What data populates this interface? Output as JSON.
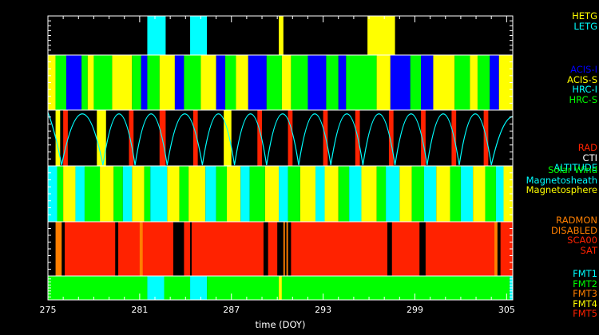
{
  "chart_data": {
    "type": "timeline",
    "xlabel": "time (DOY)",
    "x_range": [
      275,
      305.4
    ],
    "x_ticks": [
      275,
      281,
      287,
      293,
      299,
      305
    ],
    "colors": {
      "HETG": "#ffff00",
      "LETG": "#00ffff",
      "ACIS-I": "#0000ff",
      "ACIS-S": "#ffff00",
      "HRC-I": "#00ffff",
      "HRC-S": "#00ff00",
      "RAD": "#ff2200",
      "CTI": "#ffffff",
      "ALTITUDE": "#00ffff",
      "Solar Wind": "#00ff00",
      "Magnetosheath": "#00ffff",
      "Magnetosphere": "#ffff00",
      "RADMON": "#ff7f00",
      "DISABLED": "#ff7f00",
      "SCA00": "#ff2200",
      "SAT": "#ff2200",
      "FMT1": "#00ffff",
      "FMT2": "#00ff00",
      "FMT3": "#ff7f00",
      "FMT4": "#ffff00",
      "FMT5": "#ff2200",
      "none": "#000000"
    },
    "panels": [
      {
        "legend": [
          "HETG",
          "LETG"
        ],
        "segments": [
          {
            "start": 281.5,
            "end": 282.7,
            "state": "LETG"
          },
          {
            "start": 284.3,
            "end": 285.4,
            "state": "LETG"
          },
          {
            "start": 290.1,
            "end": 290.4,
            "state": "HETG"
          },
          {
            "start": 295.9,
            "end": 297.7,
            "state": "HETG"
          }
        ]
      },
      {
        "legend": [
          "ACIS-I",
          "ACIS-S",
          "HRC-I",
          "HRC-S"
        ],
        "segments": [
          {
            "start": 275.0,
            "end": 275.5,
            "state": "ACIS-S"
          },
          {
            "start": 275.5,
            "end": 276.2,
            "state": "HRC-S"
          },
          {
            "start": 276.2,
            "end": 277.2,
            "state": "ACIS-I"
          },
          {
            "start": 277.2,
            "end": 277.6,
            "state": "HRC-S"
          },
          {
            "start": 277.6,
            "end": 278.0,
            "state": "ACIS-S"
          },
          {
            "start": 278.0,
            "end": 279.2,
            "state": "HRC-S"
          },
          {
            "start": 279.2,
            "end": 280.5,
            "state": "ACIS-S"
          },
          {
            "start": 280.5,
            "end": 281.1,
            "state": "HRC-S"
          },
          {
            "start": 281.1,
            "end": 281.5,
            "state": "ACIS-I"
          },
          {
            "start": 281.5,
            "end": 282.3,
            "state": "HRC-S"
          },
          {
            "start": 282.3,
            "end": 283.3,
            "state": "ACIS-S"
          },
          {
            "start": 283.3,
            "end": 283.9,
            "state": "ACIS-I"
          },
          {
            "start": 283.9,
            "end": 285.0,
            "state": "HRC-S"
          },
          {
            "start": 285.0,
            "end": 286.0,
            "state": "ACIS-S"
          },
          {
            "start": 286.0,
            "end": 286.6,
            "state": "ACIS-I"
          },
          {
            "start": 286.6,
            "end": 287.3,
            "state": "HRC-S"
          },
          {
            "start": 287.3,
            "end": 288.1,
            "state": "ACIS-S"
          },
          {
            "start": 288.1,
            "end": 289.3,
            "state": "ACIS-I"
          },
          {
            "start": 289.3,
            "end": 290.3,
            "state": "HRC-S"
          },
          {
            "start": 290.3,
            "end": 290.9,
            "state": "ACIS-S"
          },
          {
            "start": 290.9,
            "end": 292.0,
            "state": "HRC-S"
          },
          {
            "start": 292.0,
            "end": 293.2,
            "state": "ACIS-I"
          },
          {
            "start": 293.2,
            "end": 294.0,
            "state": "HRC-S"
          },
          {
            "start": 294.0,
            "end": 294.5,
            "state": "ACIS-I"
          },
          {
            "start": 294.5,
            "end": 296.5,
            "state": "HRC-S"
          },
          {
            "start": 296.5,
            "end": 297.4,
            "state": "ACIS-S"
          },
          {
            "start": 297.4,
            "end": 298.7,
            "state": "ACIS-I"
          },
          {
            "start": 298.7,
            "end": 299.4,
            "state": "HRC-S"
          },
          {
            "start": 299.4,
            "end": 300.2,
            "state": "ACIS-I"
          },
          {
            "start": 300.2,
            "end": 301.6,
            "state": "ACIS-S"
          },
          {
            "start": 301.6,
            "end": 302.6,
            "state": "HRC-S"
          },
          {
            "start": 302.6,
            "end": 303.1,
            "state": "ACIS-S"
          },
          {
            "start": 303.1,
            "end": 303.9,
            "state": "HRC-S"
          },
          {
            "start": 303.9,
            "end": 304.5,
            "state": "ACIS-I"
          },
          {
            "start": 304.5,
            "end": 305.4,
            "state": "ACIS-S"
          }
        ]
      },
      {
        "legend": [
          "RAD",
          "CTI",
          "ALTITUDE"
        ],
        "segments": [
          {
            "start": 275.5,
            "end": 275.8,
            "state": "ACIS-S"
          },
          {
            "start": 276.0,
            "end": 276.3,
            "state": "RAD"
          },
          {
            "start": 278.2,
            "end": 278.8,
            "state": "ACIS-S"
          },
          {
            "start": 280.3,
            "end": 280.6,
            "state": "RAD"
          },
          {
            "start": 282.3,
            "end": 282.7,
            "state": "RAD"
          },
          {
            "start": 284.5,
            "end": 284.8,
            "state": "RAD"
          },
          {
            "start": 286.5,
            "end": 287.0,
            "state": "ACIS-S"
          },
          {
            "start": 288.7,
            "end": 289.0,
            "state": "RAD"
          },
          {
            "start": 290.7,
            "end": 291.0,
            "state": "RAD"
          },
          {
            "start": 293.0,
            "end": 293.3,
            "state": "RAD"
          },
          {
            "start": 295.1,
            "end": 295.4,
            "state": "RAD"
          },
          {
            "start": 297.3,
            "end": 297.6,
            "state": "RAD"
          },
          {
            "start": 299.4,
            "end": 299.7,
            "state": "RAD"
          },
          {
            "start": 301.4,
            "end": 301.7,
            "state": "RAD"
          },
          {
            "start": 303.5,
            "end": 303.8,
            "state": "RAD"
          }
        ],
        "altitude_minima_doy": [
          275.9,
          278.6,
          280.7,
          282.8,
          285.1,
          287.2,
          289.3,
          291.4,
          293.5,
          295.6,
          297.7,
          299.8,
          301.9,
          304.0
        ]
      },
      {
        "legend": [
          "Solar Wind",
          "Magnetosheath",
          "Magnetosphere"
        ],
        "segments": [
          {
            "start": 275.0,
            "end": 275.6,
            "state": "Magnetosheath"
          },
          {
            "start": 275.6,
            "end": 276.0,
            "state": "Solar Wind"
          },
          {
            "start": 276.0,
            "end": 276.8,
            "state": "Magnetosphere"
          },
          {
            "start": 276.8,
            "end": 277.4,
            "state": "Magnetosheath"
          },
          {
            "start": 277.4,
            "end": 278.4,
            "state": "Solar Wind"
          },
          {
            "start": 278.4,
            "end": 279.3,
            "state": "Magnetosphere"
          },
          {
            "start": 279.3,
            "end": 279.9,
            "state": "Solar Wind"
          },
          {
            "start": 279.9,
            "end": 280.5,
            "state": "Magnetosheath"
          },
          {
            "start": 280.5,
            "end": 281.3,
            "state": "Magnetosphere"
          },
          {
            "start": 281.3,
            "end": 281.7,
            "state": "Solar Wind"
          },
          {
            "start": 281.7,
            "end": 282.8,
            "state": "Magnetosheath"
          },
          {
            "start": 282.8,
            "end": 283.6,
            "state": "Magnetosphere"
          },
          {
            "start": 283.6,
            "end": 284.2,
            "state": "Solar Wind"
          },
          {
            "start": 284.2,
            "end": 285.3,
            "state": "Magnetosphere"
          },
          {
            "start": 285.3,
            "end": 286.0,
            "state": "Magnetosheath"
          },
          {
            "start": 286.0,
            "end": 286.7,
            "state": "Solar Wind"
          },
          {
            "start": 286.7,
            "end": 287.6,
            "state": "Magnetosphere"
          },
          {
            "start": 287.6,
            "end": 288.2,
            "state": "Magnetosheath"
          },
          {
            "start": 288.2,
            "end": 289.2,
            "state": "Solar Wind"
          },
          {
            "start": 289.2,
            "end": 290.1,
            "state": "Magnetosphere"
          },
          {
            "start": 290.1,
            "end": 290.7,
            "state": "Magnetosheath"
          },
          {
            "start": 290.7,
            "end": 291.5,
            "state": "Solar Wind"
          },
          {
            "start": 291.5,
            "end": 292.5,
            "state": "Magnetosphere"
          },
          {
            "start": 292.5,
            "end": 293.1,
            "state": "Magnetosheath"
          },
          {
            "start": 293.1,
            "end": 294.0,
            "state": "Magnetosphere"
          },
          {
            "start": 294.0,
            "end": 294.7,
            "state": "Solar Wind"
          },
          {
            "start": 294.7,
            "end": 295.5,
            "state": "Magnetosheath"
          },
          {
            "start": 295.5,
            "end": 296.5,
            "state": "Magnetosphere"
          },
          {
            "start": 296.5,
            "end": 297.1,
            "state": "Solar Wind"
          },
          {
            "start": 297.1,
            "end": 298.0,
            "state": "Magnetosheath"
          },
          {
            "start": 298.0,
            "end": 298.8,
            "state": "Magnetosphere"
          },
          {
            "start": 298.8,
            "end": 299.6,
            "state": "Solar Wind"
          },
          {
            "start": 299.6,
            "end": 300.4,
            "state": "Magnetosheath"
          },
          {
            "start": 300.4,
            "end": 301.3,
            "state": "Magnetosphere"
          },
          {
            "start": 301.3,
            "end": 302.0,
            "state": "Solar Wind"
          },
          {
            "start": 302.0,
            "end": 302.8,
            "state": "Magnetosheath"
          },
          {
            "start": 302.8,
            "end": 303.6,
            "state": "Magnetosphere"
          },
          {
            "start": 303.6,
            "end": 304.3,
            "state": "Solar Wind"
          },
          {
            "start": 304.3,
            "end": 304.8,
            "state": "Magnetosheath"
          },
          {
            "start": 304.8,
            "end": 305.4,
            "state": "Magnetosphere"
          }
        ]
      },
      {
        "legend": [
          "RADMON",
          "DISABLED",
          "SCA00",
          "SAT"
        ],
        "segments": [
          {
            "start": 275.5,
            "end": 275.9,
            "state": "RADMON"
          },
          {
            "start": 276.1,
            "end": 279.4,
            "state": "SCA00"
          },
          {
            "start": 279.6,
            "end": 283.2,
            "state": "SCA00"
          },
          {
            "start": 281.0,
            "end": 281.2,
            "state": "RADMON"
          },
          {
            "start": 283.9,
            "end": 284.3,
            "state": "SCA00"
          },
          {
            "start": 284.4,
            "end": 289.1,
            "state": "SCA00"
          },
          {
            "start": 289.4,
            "end": 290.0,
            "state": "SCA00"
          },
          {
            "start": 290.4,
            "end": 290.5,
            "state": "RADMON"
          },
          {
            "start": 290.6,
            "end": 290.7,
            "state": "RADMON"
          },
          {
            "start": 290.9,
            "end": 297.2,
            "state": "SCA00"
          },
          {
            "start": 297.5,
            "end": 299.3,
            "state": "SCA00"
          },
          {
            "start": 299.7,
            "end": 304.2,
            "state": "SCA00"
          },
          {
            "start": 304.2,
            "end": 304.4,
            "state": "RADMON"
          },
          {
            "start": 304.6,
            "end": 305.4,
            "state": "SCA00"
          }
        ]
      },
      {
        "legend": [
          "FMT1",
          "FMT2",
          "FMT3",
          "FMT4",
          "FMT5"
        ],
        "segments": [
          {
            "start": 275.0,
            "end": 281.5,
            "state": "FMT2"
          },
          {
            "start": 281.5,
            "end": 282.6,
            "state": "FMT1"
          },
          {
            "start": 282.6,
            "end": 284.3,
            "state": "FMT2"
          },
          {
            "start": 284.3,
            "end": 285.4,
            "state": "FMT1"
          },
          {
            "start": 285.4,
            "end": 290.1,
            "state": "FMT2"
          },
          {
            "start": 290.1,
            "end": 290.3,
            "state": "FMT4"
          },
          {
            "start": 290.3,
            "end": 305.2,
            "state": "FMT2"
          },
          {
            "start": 305.2,
            "end": 305.4,
            "state": "FMT1"
          }
        ]
      }
    ]
  }
}
